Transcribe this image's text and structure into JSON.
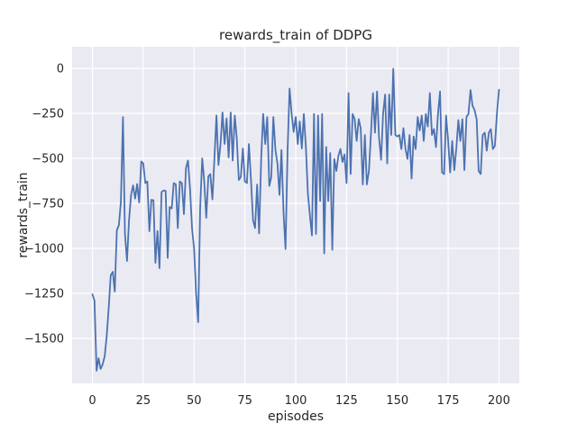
{
  "figure": {
    "background": "#ffffff"
  },
  "chart_data": {
    "type": "line",
    "title": "rewards_train of DDPG",
    "xlabel": "episodes",
    "ylabel": "rewards_train",
    "x_ticks": [
      0,
      25,
      50,
      75,
      100,
      125,
      150,
      175,
      200
    ],
    "x_tick_labels": [
      "0",
      "25",
      "50",
      "75",
      "100",
      "125",
      "150",
      "175",
      "200"
    ],
    "y_ticks": [
      0,
      -250,
      -500,
      -750,
      -1000,
      -1250,
      -1500
    ],
    "y_tick_labels": [
      "0",
      "−250",
      "−500",
      "−750",
      "−1000",
      "−1250",
      "−1500"
    ],
    "xlim": [
      -10,
      210
    ],
    "ylim": [
      -1750,
      120
    ],
    "grid": true,
    "legend": "none",
    "style": {
      "axes_background": "#eaeaf2",
      "grid_color": "#ffffff",
      "line_color": "#4c72b0",
      "text_color": "#262626",
      "figure_background": "#ffffff"
    },
    "series": [
      {
        "name": "rewards_train",
        "x_start": 0,
        "x_step": 1,
        "values": [
          -1255,
          -1290,
          -1680,
          -1610,
          -1670,
          -1645,
          -1600,
          -1490,
          -1330,
          -1150,
          -1130,
          -1240,
          -900,
          -870,
          -740,
          -270,
          -920,
          -1070,
          -845,
          -703,
          -650,
          -723,
          -642,
          -745,
          -517,
          -528,
          -637,
          -628,
          -905,
          -730,
          -733,
          -1080,
          -903,
          -1110,
          -687,
          -678,
          -680,
          -1053,
          -770,
          -778,
          -637,
          -645,
          -887,
          -628,
          -637,
          -810,
          -553,
          -512,
          -670,
          -887,
          -1003,
          -1250,
          -1410,
          -778,
          -500,
          -625,
          -830,
          -600,
          -587,
          -728,
          -503,
          -262,
          -537,
          -420,
          -245,
          -420,
          -278,
          -495,
          -245,
          -512,
          -262,
          -387,
          -620,
          -603,
          -445,
          -628,
          -637,
          -420,
          -620,
          -845,
          -887,
          -645,
          -917,
          -500,
          -253,
          -420,
          -270,
          -653,
          -603,
          -270,
          -453,
          -528,
          -703,
          -453,
          -803,
          -1003,
          -453,
          -112,
          -253,
          -353,
          -270,
          -420,
          -295,
          -445,
          -253,
          -437,
          -695,
          -820,
          -928,
          -253,
          -920,
          -262,
          -737,
          -253,
          -1028,
          -437,
          -737,
          -470,
          -1008,
          -503,
          -570,
          -487,
          -448,
          -520,
          -478,
          -637,
          -137,
          -587,
          -253,
          -282,
          -403,
          -282,
          -332,
          -645,
          -370,
          -645,
          -570,
          -370,
          -137,
          -357,
          -128,
          -383,
          -508,
          -253,
          -145,
          -528,
          -145,
          -370,
          -2,
          -370,
          -378,
          -370,
          -448,
          -332,
          -445,
          -503,
          -370,
          -612,
          -378,
          -448,
          -270,
          -345,
          -262,
          -403,
          -253,
          -323,
          -137,
          -370,
          -337,
          -437,
          -253,
          -128,
          -578,
          -587,
          -262,
          -403,
          -578,
          -403,
          -565,
          -448,
          -287,
          -403,
          -282,
          -565,
          -270,
          -253,
          -120,
          -207,
          -232,
          -282,
          -570,
          -587,
          -370,
          -357,
          -457,
          -357,
          -337,
          -448,
          -430,
          -250,
          -118
        ]
      }
    ]
  }
}
